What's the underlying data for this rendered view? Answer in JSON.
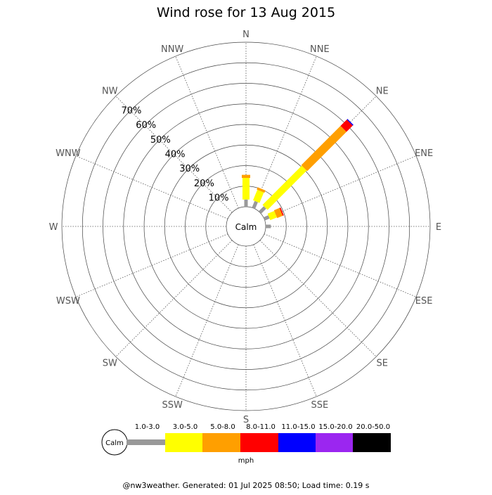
{
  "chart_data": {
    "type": "wind-rose",
    "title": "Wind rose for 13 Aug 2015",
    "directions": [
      "N",
      "NNE",
      "NE",
      "ENE",
      "E",
      "ESE",
      "SE",
      "SSE",
      "S",
      "SSW",
      "SW",
      "WSW",
      "W",
      "WNW",
      "NW",
      "NNW"
    ],
    "radial_ticks": [
      "10%",
      "20%",
      "30%",
      "40%",
      "50%",
      "60%",
      "70%"
    ],
    "rmax_percent": 80,
    "calm_label": "Calm",
    "speed_bins": [
      {
        "label": "1.0-3.0",
        "color": "#999999"
      },
      {
        "label": "3.0-5.0",
        "color": "#ffff00"
      },
      {
        "label": "5.0-8.0",
        "color": "#ff9f00"
      },
      {
        "label": "8.0-11.0",
        "color": "#ff0000"
      },
      {
        "label": "11.0-15.0",
        "color": "#0000ff"
      },
      {
        "label": "15.0-20.0",
        "color": "#9b26f0"
      },
      {
        "label": "20.0-50.0",
        "color": "#000000"
      }
    ],
    "units": "mph",
    "series": [
      {
        "direction": "N",
        "values": [
          3.5,
          10.5,
          1.5,
          0,
          0,
          0,
          0
        ]
      },
      {
        "direction": "NNE",
        "values": [
          3.5,
          5.5,
          1.2,
          0,
          0,
          0,
          0
        ]
      },
      {
        "direction": "NE",
        "values": [
          3.5,
          27.0,
          27.0,
          4.3,
          0.5,
          0,
          0
        ]
      },
      {
        "direction": "ENE",
        "values": [
          2.5,
          3.5,
          2.9,
          0.6,
          0,
          0,
          0
        ]
      },
      {
        "direction": "E",
        "values": [
          2.5,
          0,
          0,
          0,
          0,
          0,
          0
        ]
      }
    ]
  },
  "footer": "@nw3weather. Generated: 01 Jul 2025 08:50; Load time: 0.19 s"
}
